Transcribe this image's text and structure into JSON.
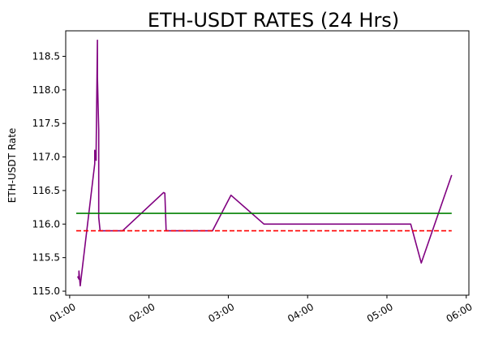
{
  "chart_data": {
    "type": "line",
    "title": "ETH-USDT RATES (24 Hrs)",
    "xlabel": "",
    "ylabel": "ETH-USDT Rate",
    "xlim": [
      "01:00",
      "06:00"
    ],
    "ylim": [
      114.94,
      118.88
    ],
    "x_ticks": [
      "01:00",
      "02:00",
      "03:00",
      "04:00",
      "05:00",
      "06:00"
    ],
    "y_ticks": [
      "115.0",
      "115.5",
      "116.0",
      "116.5",
      "117.0",
      "117.5",
      "118.0",
      "118.5"
    ],
    "grid": false,
    "colors": {
      "series": "#800080",
      "reference": "#008000",
      "threshold": "#ff0000"
    },
    "series": [
      {
        "style": "solid",
        "color": "#800080",
        "points": [
          [
            "01:06",
            115.22
          ],
          [
            "01:07",
            115.18
          ],
          [
            "01:07",
            115.3
          ],
          [
            "01:08",
            115.08
          ],
          [
            "01:19",
            116.9
          ],
          [
            "01:19",
            117.1
          ],
          [
            "01:20",
            116.95
          ],
          [
            "01:20",
            117.1
          ],
          [
            "01:21",
            118.74
          ],
          [
            "01:21",
            118.2
          ],
          [
            "01:22",
            117.4
          ],
          [
            "01:22",
            116.1
          ],
          [
            "01:23",
            115.9
          ],
          [
            "01:40",
            115.9
          ],
          [
            "02:11",
            116.47
          ],
          [
            "02:12",
            116.46
          ],
          [
            "02:13",
            115.9
          ],
          [
            "02:48",
            115.9
          ],
          [
            "03:02",
            116.43
          ],
          [
            "03:27",
            116.0
          ],
          [
            "05:18",
            116.0
          ],
          [
            "05:26",
            115.42
          ],
          [
            "05:49",
            116.73
          ]
        ]
      },
      {
        "style": "solid",
        "color": "#008000",
        "points": [
          [
            "01:05",
            116.16
          ],
          [
            "05:49",
            116.16
          ]
        ]
      },
      {
        "style": "dashed",
        "color": "#ff0000",
        "points": [
          [
            "01:05",
            115.9
          ],
          [
            "05:49",
            115.9
          ]
        ]
      }
    ]
  }
}
